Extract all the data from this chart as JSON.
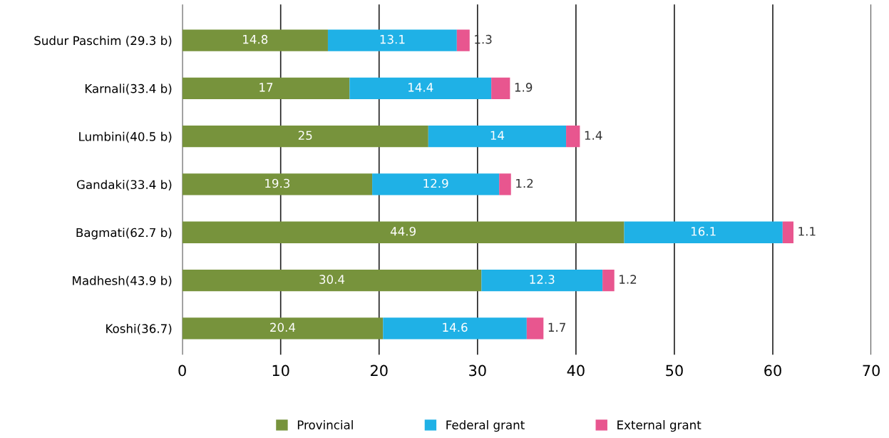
{
  "chart_data": {
    "type": "bar",
    "orientation": "horizontal",
    "stacked": true,
    "categories": [
      "Sudur Paschim (29.3 b)",
      "Karnali(33.4 b)",
      "Lumbini(40.5 b)",
      "Gandaki(33.4 b)",
      "Bagmati(62.7 b)",
      "Madhesh(43.9 b)",
      "Koshi(36.7)"
    ],
    "series": [
      {
        "name": "Provincial",
        "color": "#77933c",
        "values": [
          14.8,
          17,
          25,
          19.3,
          44.9,
          30.4,
          20.4
        ]
      },
      {
        "name": "Federal grant",
        "color": "#1fb1e6",
        "values": [
          13.1,
          14.4,
          14,
          12.9,
          16.1,
          12.3,
          14.6
        ]
      },
      {
        "name": "External grant",
        "color": "#e8568f",
        "values": [
          1.3,
          1.9,
          1.4,
          1.2,
          1.1,
          1.2,
          1.7
        ]
      }
    ],
    "xlim": [
      0,
      70
    ],
    "xticks": [
      0,
      10,
      20,
      30,
      40,
      50,
      60,
      70
    ],
    "grid": "x",
    "legend": "bottom",
    "data_labels": true
  }
}
